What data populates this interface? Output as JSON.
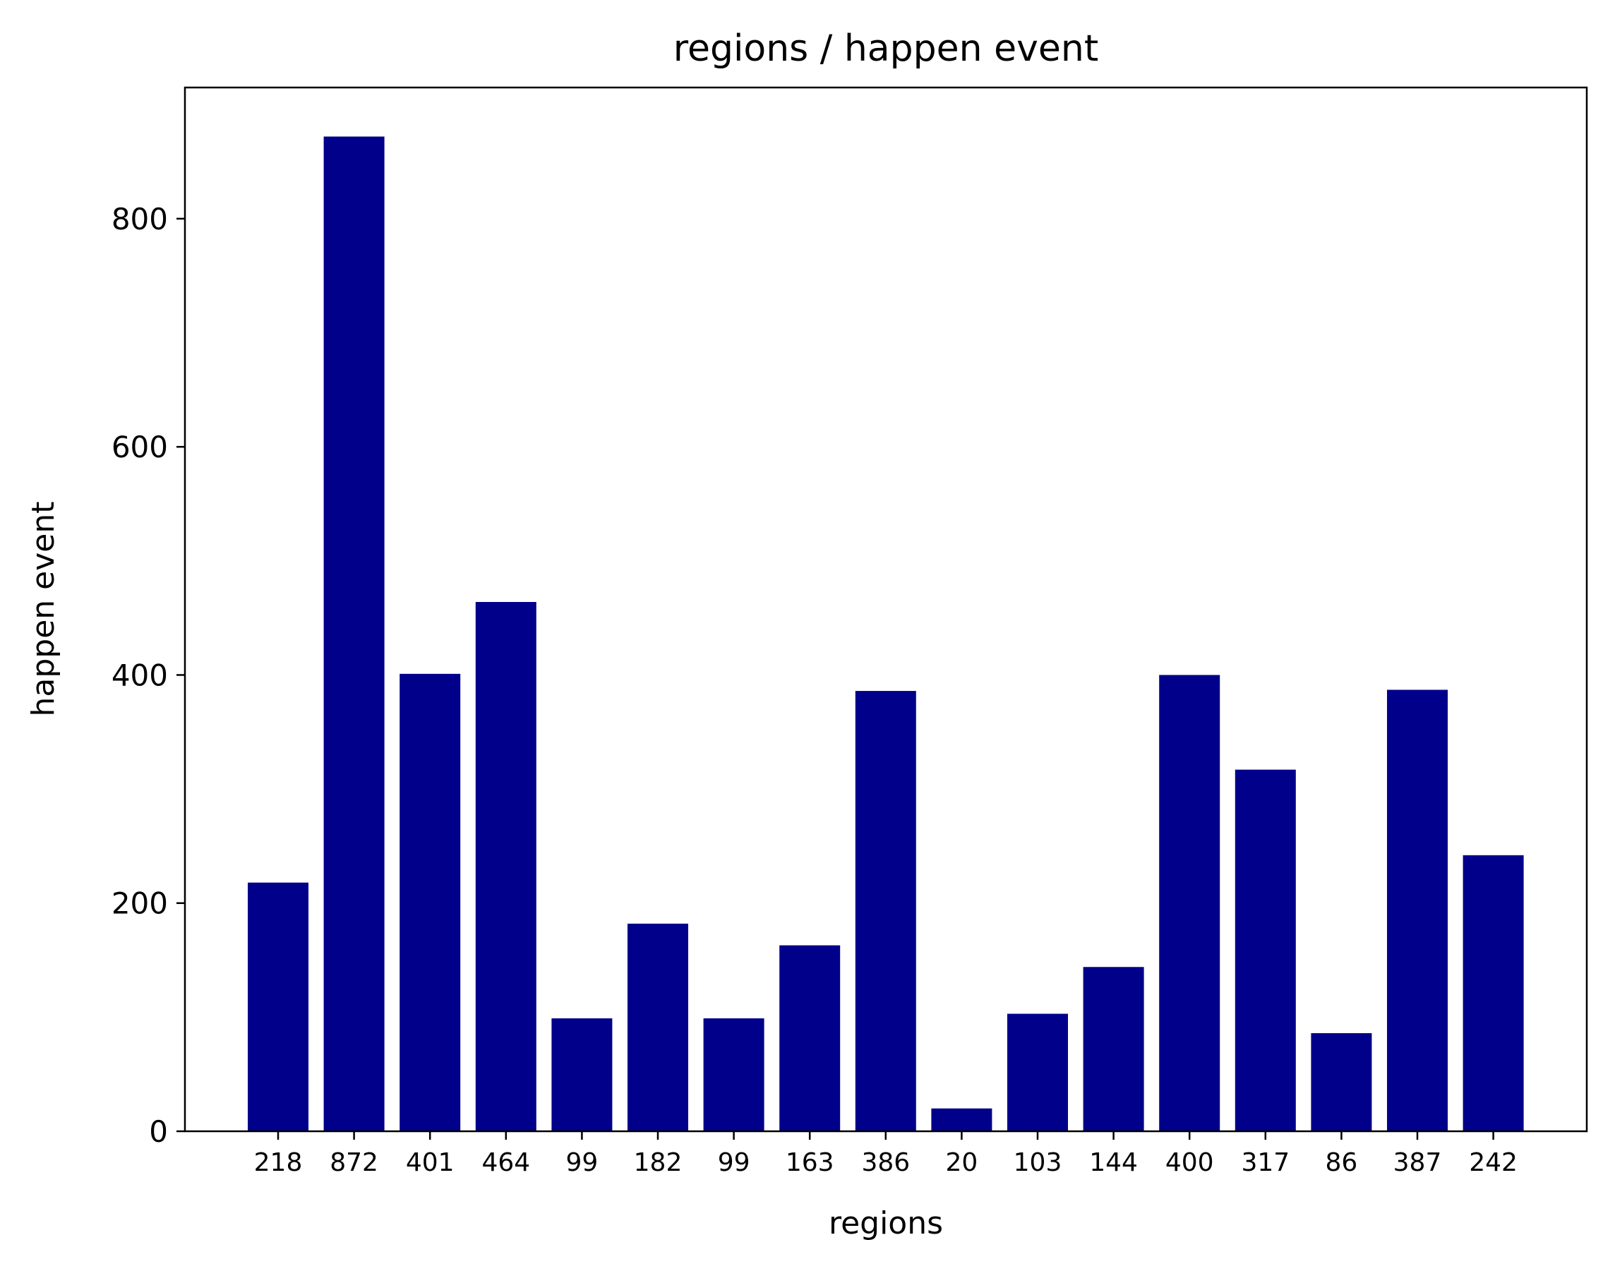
{
  "chart_data": {
    "type": "bar",
    "title": "regions / happen event",
    "xlabel": "regions",
    "ylabel": "happen event",
    "categories": [
      "218",
      "872",
      "401",
      "464",
      "99",
      "182",
      "99",
      "163",
      "386",
      "20",
      "103",
      "144",
      "400",
      "317",
      "86",
      "387",
      "242"
    ],
    "values": [
      218,
      872,
      401,
      464,
      99,
      182,
      99,
      163,
      386,
      20,
      103,
      144,
      400,
      317,
      86,
      387,
      242
    ],
    "ylim": [
      0,
      915
    ],
    "yticks": [
      0,
      200,
      400,
      600,
      800
    ],
    "bar_color": "#00008b",
    "grid": false,
    "legend": "none"
  }
}
